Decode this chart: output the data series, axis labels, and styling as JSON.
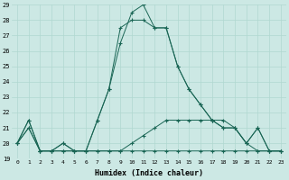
{
  "xlabel": "Humidex (Indice chaleur)",
  "ylabel": "",
  "bg_color": "#cce8e4",
  "grid_color": "#b0d8d0",
  "line_color": "#1a6655",
  "x": [
    0,
    1,
    2,
    3,
    4,
    5,
    6,
    7,
    8,
    9,
    10,
    11,
    12,
    13,
    14,
    15,
    16,
    17,
    18,
    19,
    20,
    21,
    22,
    23
  ],
  "series_high1": [
    20,
    21.5,
    19.5,
    19.5,
    20,
    19.5,
    19.5,
    21.5,
    23.5,
    26.5,
    28.5,
    29,
    27.5,
    27.5,
    25,
    23.5,
    22.5,
    21.5,
    21,
    21,
    20,
    21,
    19.5,
    19.5
  ],
  "series_high2": [
    20,
    21.5,
    19.5,
    19.5,
    20,
    19.5,
    19.5,
    21.5,
    23.5,
    27.5,
    28,
    28,
    27.5,
    27.5,
    25,
    23.5,
    22.5,
    21.5,
    21,
    21,
    20,
    21,
    19.5,
    19.5
  ],
  "series_low1": [
    20,
    21,
    19.5,
    19.5,
    19.5,
    19.5,
    19.5,
    19.5,
    19.5,
    19.5,
    20,
    20.5,
    21,
    21.5,
    21.5,
    21.5,
    21.5,
    21.5,
    21.5,
    21,
    20,
    19.5,
    19.5,
    19.5
  ],
  "series_low2": [
    20,
    21,
    19.5,
    19.5,
    19.5,
    19.5,
    19.5,
    19.5,
    19.5,
    19.5,
    19.5,
    19.5,
    19.5,
    19.5,
    19.5,
    19.5,
    19.5,
    19.5,
    19.5,
    19.5,
    19.5,
    19.5,
    19.5,
    19.5
  ],
  "ylim": [
    19,
    29
  ],
  "xlim": [
    -0.5,
    23.5
  ],
  "yticks": [
    19,
    20,
    21,
    22,
    23,
    24,
    25,
    26,
    27,
    28,
    29
  ],
  "xticks": [
    0,
    1,
    2,
    3,
    4,
    5,
    6,
    7,
    8,
    9,
    10,
    11,
    12,
    13,
    14,
    15,
    16,
    17,
    18,
    19,
    20,
    21,
    22,
    23
  ]
}
